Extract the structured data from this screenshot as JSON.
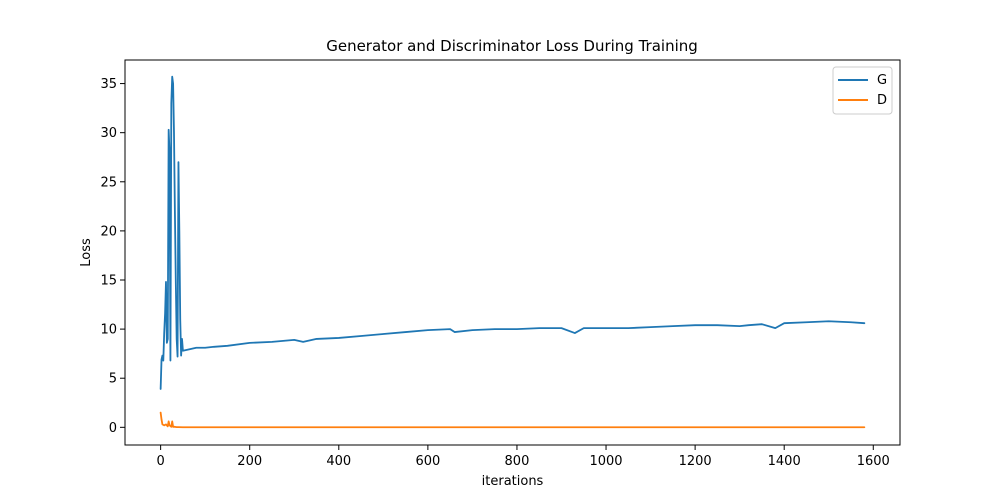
{
  "chart_data": {
    "type": "line",
    "title": "Generator and Discriminator Loss During Training",
    "xlabel": "iterations",
    "ylabel": "Loss",
    "xlim": [
      -80,
      1660
    ],
    "ylim": [
      -1.8,
      37.4
    ],
    "xticks": [
      0,
      200,
      400,
      600,
      800,
      1000,
      1200,
      1400,
      1600
    ],
    "xtick_labels": [
      "0",
      "200",
      "400",
      "600",
      "800",
      "1000",
      "1200",
      "1400",
      "1600"
    ],
    "yticks": [
      0,
      5,
      10,
      15,
      20,
      25,
      30,
      35
    ],
    "ytick_labels": [
      "0",
      "5",
      "10",
      "15",
      "20",
      "25",
      "30",
      "35"
    ],
    "grid": false,
    "legend_position": "top-right",
    "series": [
      {
        "name": "G",
        "color": "#1f77b4",
        "points": [
          [
            0,
            3.9
          ],
          [
            2,
            6.9
          ],
          [
            4,
            7.3
          ],
          [
            6,
            6.8
          ],
          [
            8,
            9.6
          ],
          [
            10,
            11.6
          ],
          [
            12,
            14.8
          ],
          [
            14,
            8.6
          ],
          [
            16,
            9.0
          ],
          [
            18,
            30.3
          ],
          [
            20,
            28.0
          ],
          [
            22,
            6.8
          ],
          [
            24,
            33.0
          ],
          [
            26,
            35.7
          ],
          [
            28,
            35.0
          ],
          [
            30,
            30.0
          ],
          [
            32,
            22.0
          ],
          [
            34,
            15.0
          ],
          [
            36,
            9.0
          ],
          [
            38,
            7.2
          ],
          [
            40,
            27.0
          ],
          [
            42,
            20.0
          ],
          [
            44,
            11.0
          ],
          [
            46,
            7.3
          ],
          [
            48,
            9.0
          ],
          [
            50,
            7.8
          ],
          [
            60,
            7.9
          ],
          [
            70,
            8.0
          ],
          [
            80,
            8.1
          ],
          [
            100,
            8.1
          ],
          [
            120,
            8.2
          ],
          [
            150,
            8.3
          ],
          [
            200,
            8.6
          ],
          [
            250,
            8.7
          ],
          [
            300,
            8.9
          ],
          [
            320,
            8.7
          ],
          [
            350,
            9.0
          ],
          [
            400,
            9.1
          ],
          [
            450,
            9.3
          ],
          [
            500,
            9.5
          ],
          [
            550,
            9.7
          ],
          [
            600,
            9.9
          ],
          [
            650,
            10.0
          ],
          [
            660,
            9.7
          ],
          [
            700,
            9.9
          ],
          [
            750,
            10.0
          ],
          [
            800,
            10.0
          ],
          [
            850,
            10.1
          ],
          [
            900,
            10.1
          ],
          [
            930,
            9.6
          ],
          [
            950,
            10.1
          ],
          [
            1000,
            10.1
          ],
          [
            1050,
            10.1
          ],
          [
            1100,
            10.2
          ],
          [
            1150,
            10.3
          ],
          [
            1200,
            10.4
          ],
          [
            1250,
            10.4
          ],
          [
            1300,
            10.3
          ],
          [
            1320,
            10.4
          ],
          [
            1350,
            10.5
          ],
          [
            1380,
            10.1
          ],
          [
            1400,
            10.6
          ],
          [
            1450,
            10.7
          ],
          [
            1500,
            10.8
          ],
          [
            1550,
            10.7
          ],
          [
            1580,
            10.6
          ]
        ]
      },
      {
        "name": "D",
        "color": "#ff7f0e",
        "points": [
          [
            0,
            1.5
          ],
          [
            2,
            0.8
          ],
          [
            4,
            0.3
          ],
          [
            8,
            0.2
          ],
          [
            12,
            0.3
          ],
          [
            16,
            0.1
          ],
          [
            18,
            0.6
          ],
          [
            20,
            0.2
          ],
          [
            24,
            0.05
          ],
          [
            26,
            0.6
          ],
          [
            28,
            0.05
          ],
          [
            32,
            0.05
          ],
          [
            36,
            0.02
          ],
          [
            40,
            0.02
          ],
          [
            50,
            0.01
          ],
          [
            100,
            0.01
          ],
          [
            200,
            0.01
          ],
          [
            400,
            0.01
          ],
          [
            800,
            0.01
          ],
          [
            1200,
            0.01
          ],
          [
            1580,
            0.01
          ]
        ]
      }
    ]
  }
}
